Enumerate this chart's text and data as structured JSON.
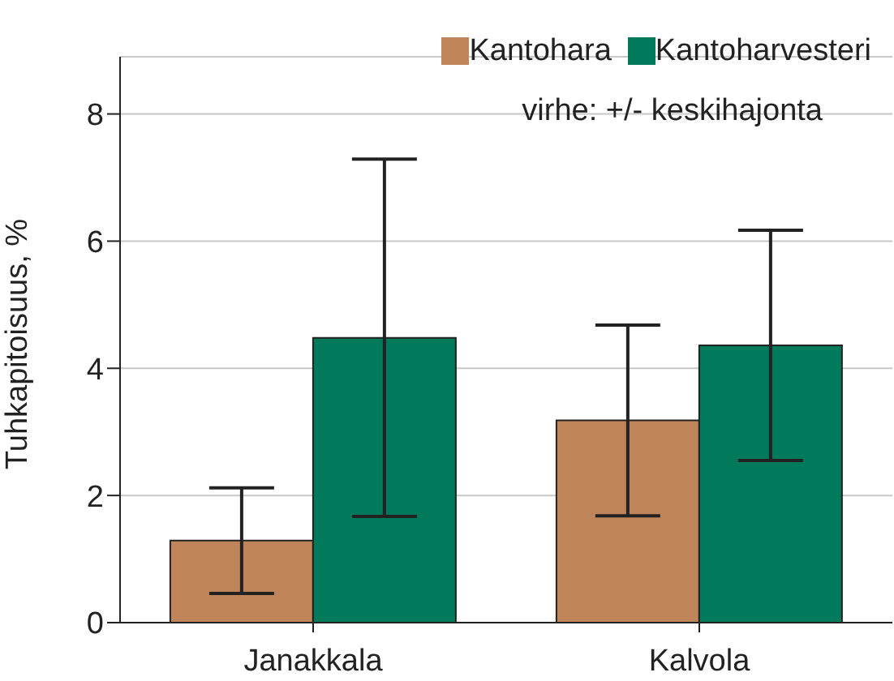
{
  "chart_data": {
    "type": "bar",
    "ylabel": "Tuhkapitoisuus, %",
    "categories": [
      "Janakkala",
      "Kalvola"
    ],
    "series": [
      {
        "name": "Kantohara",
        "color": "#c0845a",
        "values": [
          1.29,
          3.18
        ],
        "errors": [
          0.83,
          1.5
        ]
      },
      {
        "name": "Kantoharvesteri",
        "color": "#007a5a",
        "values": [
          4.48,
          4.36
        ],
        "errors": [
          2.81,
          1.81
        ]
      }
    ],
    "ylim": [
      0,
      8.9
    ],
    "yticks": [
      0,
      2,
      4,
      6,
      8
    ],
    "grid": "y",
    "legend": "top right",
    "annotations": [
      "virhe: +/- keskihajonta"
    ]
  }
}
